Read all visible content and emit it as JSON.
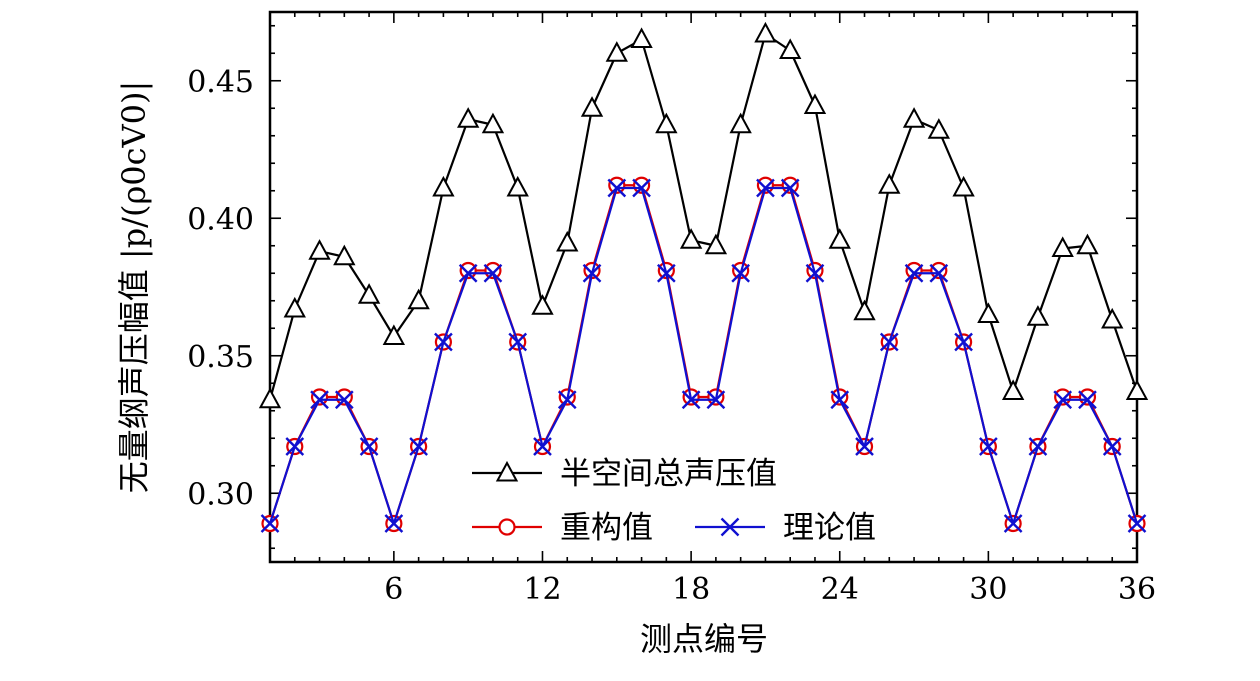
{
  "chart_data": {
    "type": "line",
    "xlabel": "测点编号",
    "ylabel": "无量纲声压幅值 |p/(ρ0cV0)|",
    "xlim": [
      1,
      36
    ],
    "ylim": [
      0.275,
      0.475
    ],
    "xticks": [
      6,
      12,
      18,
      24,
      30,
      36
    ],
    "yticks": [
      0.3,
      0.35,
      0.4,
      0.45
    ],
    "ytick_labels": [
      "0.30",
      "0.35",
      "0.40",
      "0.45"
    ],
    "grid": false,
    "legend": "bottom-center",
    "x": [
      1,
      2,
      3,
      4,
      5,
      6,
      7,
      8,
      9,
      10,
      11,
      12,
      13,
      14,
      15,
      16,
      17,
      18,
      19,
      20,
      21,
      22,
      23,
      24,
      25,
      26,
      27,
      28,
      29,
      30,
      31,
      32,
      33,
      34,
      35,
      36
    ],
    "series": [
      {
        "name": "半空间总声压值",
        "color": "#000000",
        "marker": "triangle",
        "values": [
          0.334,
          0.367,
          0.388,
          0.386,
          0.372,
          0.357,
          0.37,
          0.411,
          0.436,
          0.434,
          0.411,
          0.368,
          0.391,
          0.44,
          0.46,
          0.465,
          0.434,
          0.392,
          0.39,
          0.434,
          0.467,
          0.461,
          0.441,
          0.392,
          0.366,
          0.412,
          0.436,
          0.432,
          0.411,
          0.365,
          0.337,
          0.364,
          0.389,
          0.39,
          0.363,
          0.337
        ]
      },
      {
        "name": "重构值",
        "color": "#e00000",
        "marker": "circle",
        "values": [
          0.289,
          0.317,
          0.335,
          0.335,
          0.317,
          0.289,
          0.317,
          0.355,
          0.381,
          0.381,
          0.355,
          0.317,
          0.335,
          0.381,
          0.412,
          0.412,
          0.381,
          0.335,
          0.335,
          0.381,
          0.412,
          0.412,
          0.381,
          0.335,
          0.317,
          0.355,
          0.381,
          0.381,
          0.355,
          0.317,
          0.289,
          0.317,
          0.335,
          0.335,
          0.317,
          0.289
        ]
      },
      {
        "name": "理论值",
        "color": "#1010d0",
        "marker": "x",
        "values": [
          0.289,
          0.317,
          0.334,
          0.334,
          0.317,
          0.289,
          0.317,
          0.355,
          0.38,
          0.38,
          0.355,
          0.317,
          0.334,
          0.38,
          0.411,
          0.411,
          0.38,
          0.334,
          0.334,
          0.38,
          0.411,
          0.411,
          0.38,
          0.334,
          0.317,
          0.355,
          0.38,
          0.38,
          0.355,
          0.317,
          0.289,
          0.317,
          0.334,
          0.334,
          0.317,
          0.289
        ]
      }
    ]
  }
}
